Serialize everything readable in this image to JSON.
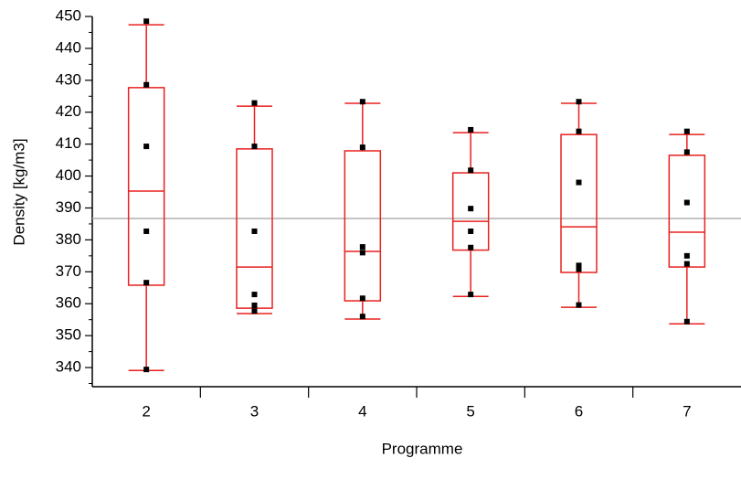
{
  "chart_data": {
    "type": "box",
    "x_label": "Programme",
    "y_label": "Density [kg/m3]",
    "categories": [
      "2",
      "3",
      "4",
      "5",
      "6",
      "7"
    ],
    "box_color": "#e8201e",
    "point_color": "#000000",
    "reference_color": "#b0b0b0",
    "reference_line": 386.7,
    "boxes": [
      {
        "whisker_low": 339.1,
        "q1": 365.8,
        "median": 395.3,
        "q3": 427.7,
        "whisker_high": 447.4,
        "points": [
          448.5,
          428.6,
          409.3,
          382.7,
          366.6,
          339.4
        ]
      },
      {
        "whisker_low": 356.9,
        "q1": 358.6,
        "median": 371.5,
        "q3": 408.5,
        "whisker_high": 421.9,
        "points": [
          422.9,
          409.3,
          382.7,
          362.9,
          359.5,
          357.7
        ]
      },
      {
        "whisker_low": 355.2,
        "q1": 360.9,
        "median": 376.4,
        "q3": 407.9,
        "whisker_high": 422.8,
        "points": [
          423.3,
          409.0,
          377.8,
          376.0,
          361.7,
          356.0
        ]
      },
      {
        "whisker_low": 362.3,
        "q1": 376.8,
        "median": 385.8,
        "q3": 401.0,
        "whisker_high": 413.6,
        "points": [
          414.5,
          401.8,
          389.8,
          382.7,
          377.6,
          362.9
        ]
      },
      {
        "whisker_low": 358.9,
        "q1": 369.8,
        "median": 384.1,
        "q3": 413.0,
        "whisker_high": 422.8,
        "points": [
          423.3,
          414.0,
          398.0,
          372.0,
          370.8,
          359.6
        ]
      },
      {
        "whisker_low": 353.7,
        "q1": 371.5,
        "median": 382.4,
        "q3": 406.5,
        "whisker_high": 413.0,
        "points": [
          414.0,
          407.5,
          391.7,
          375.0,
          372.5,
          354.4
        ]
      }
    ],
    "ylim": [
      334,
      450
    ],
    "yticks": [
      340,
      350,
      360,
      370,
      380,
      390,
      400,
      410,
      420,
      430,
      440,
      450
    ],
    "yminorticks": [
      335,
      345,
      355,
      365,
      375,
      385,
      395,
      405,
      415,
      425,
      435,
      445
    ]
  }
}
